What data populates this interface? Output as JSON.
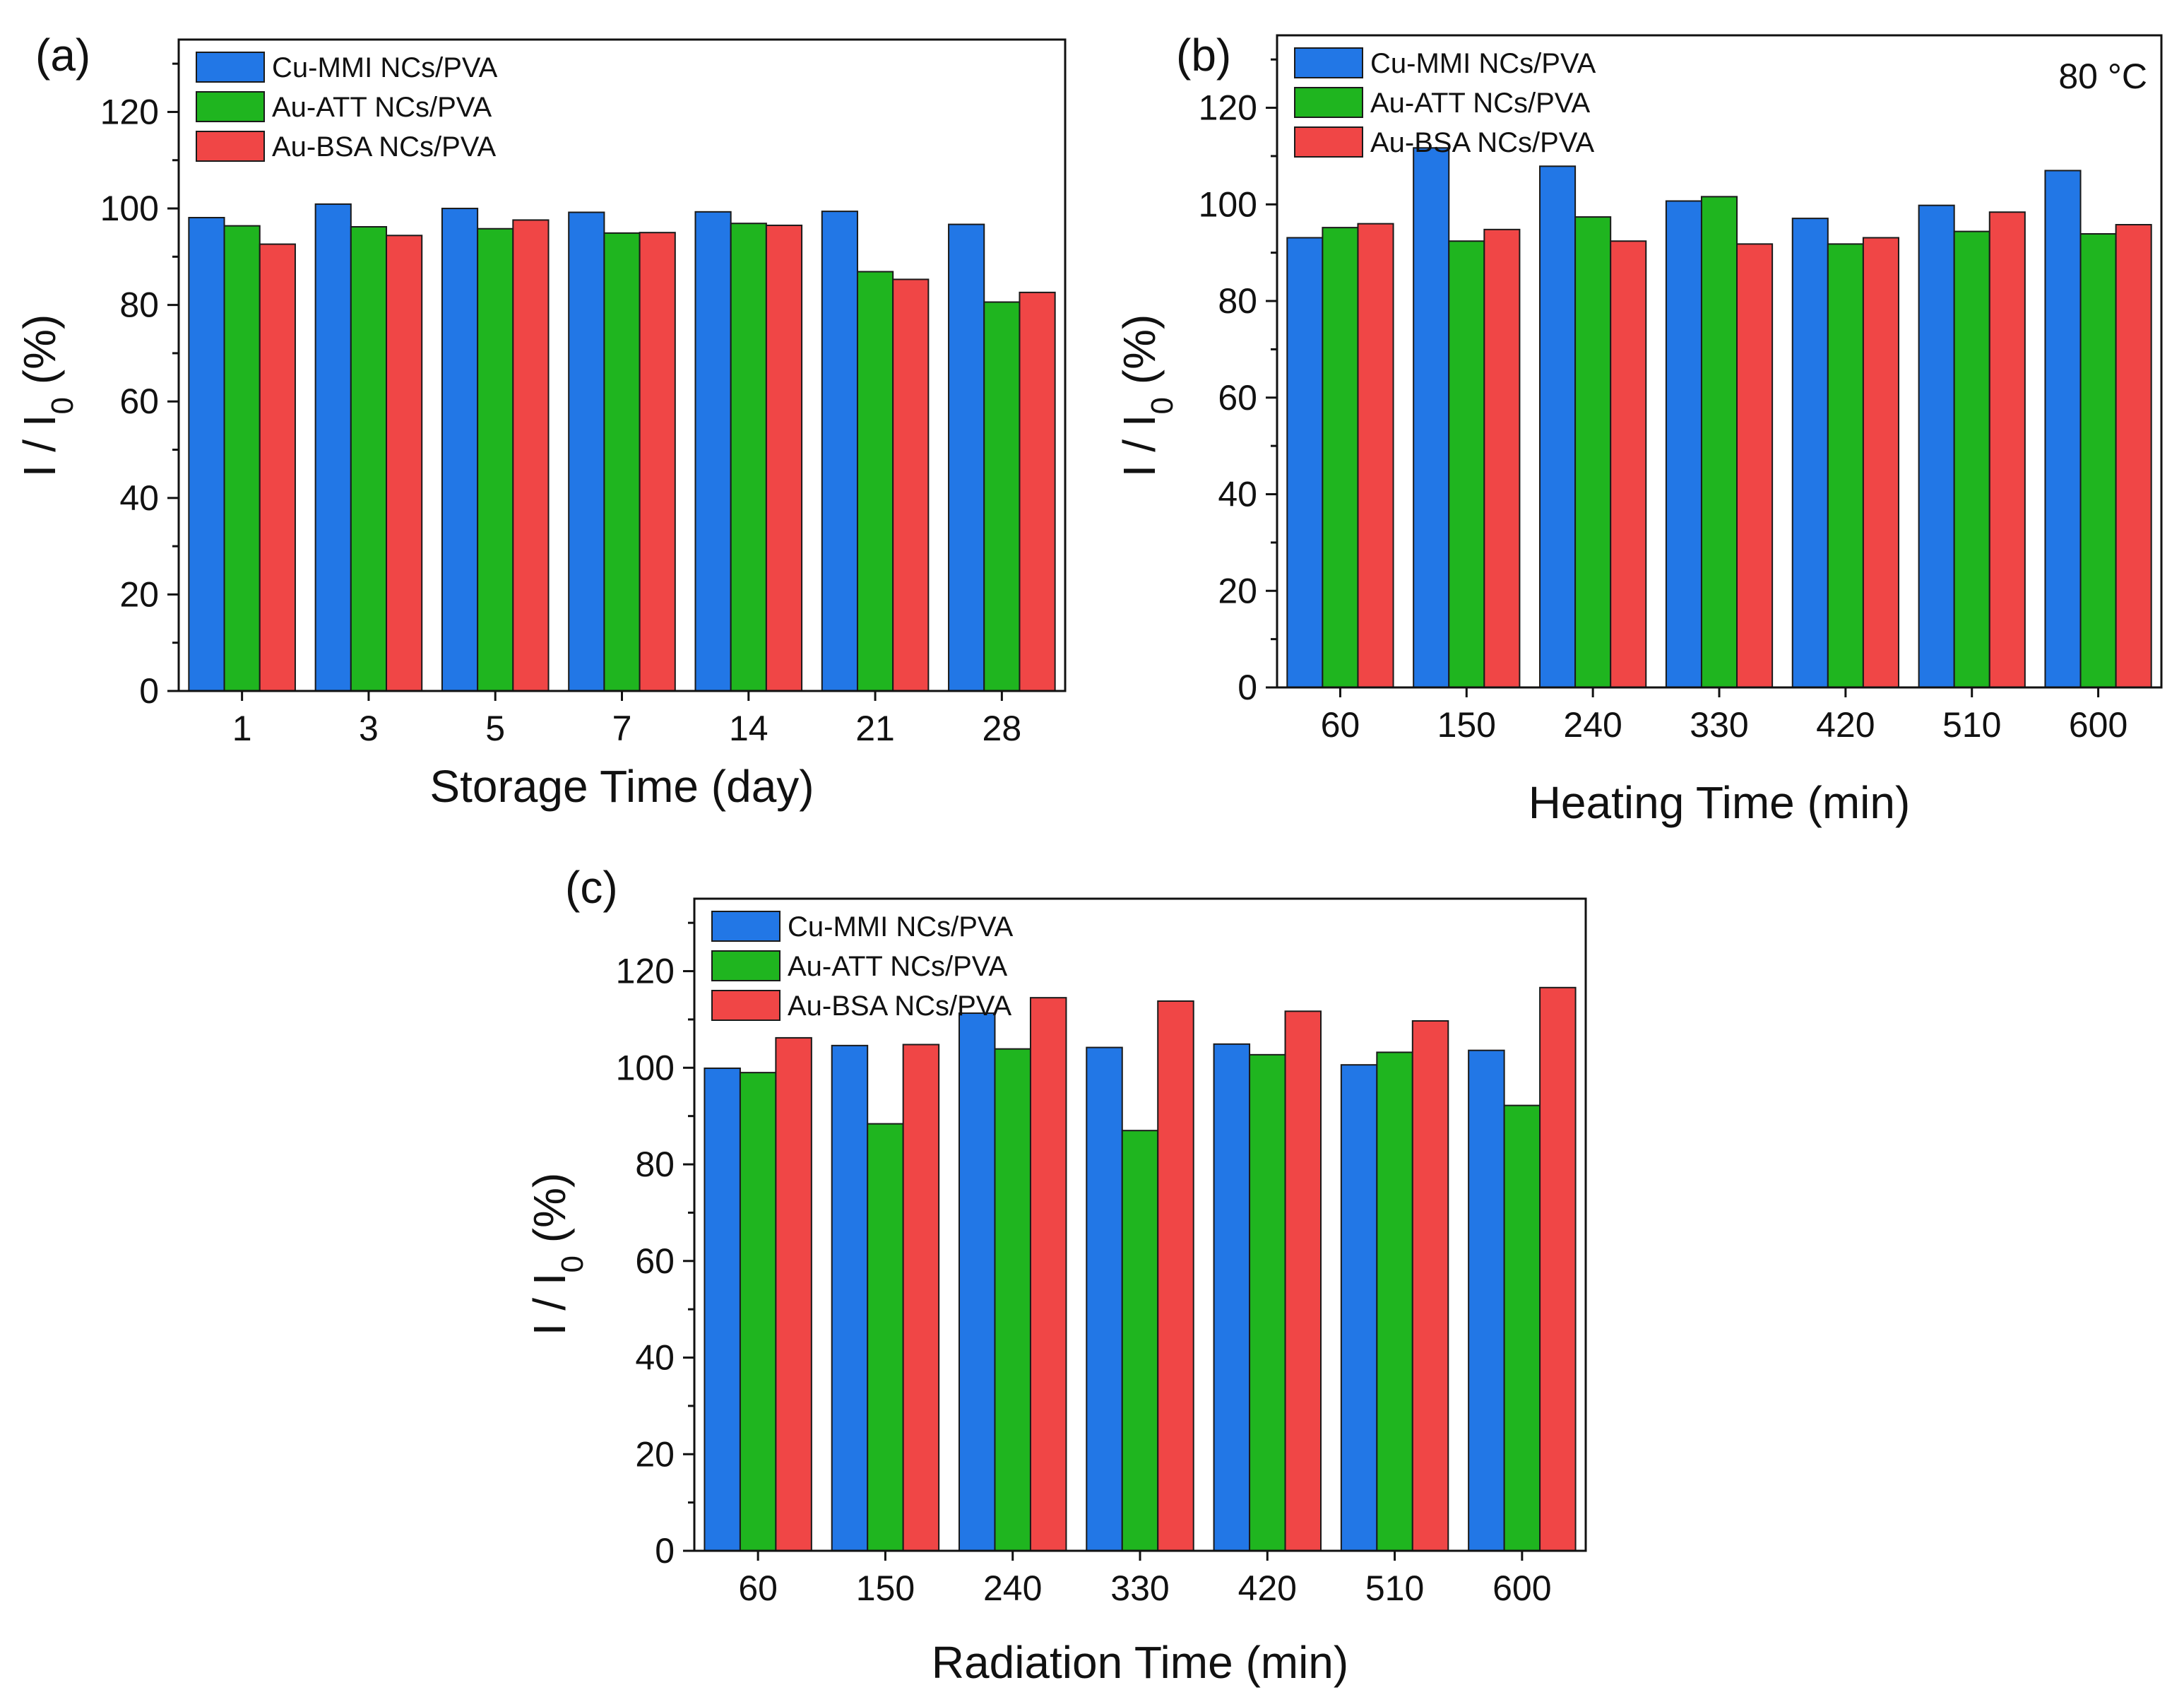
{
  "colors": {
    "cu": "#2277e6",
    "att": "#1fb51f",
    "bsa": "#f04646"
  },
  "chart_data": [
    {
      "id": "a",
      "type": "bar",
      "panel_label": "(a)",
      "xlabel": "Storage Time (day)",
      "ylabel_main": "I / I",
      "ylabel_sub": "0",
      "ylabel_tail": " (%)",
      "ylim": [
        0,
        135
      ],
      "yticks": [
        0,
        20,
        40,
        60,
        80,
        100,
        120
      ],
      "categories": [
        "1",
        "3",
        "5",
        "7",
        "14",
        "21",
        "28"
      ],
      "series": [
        {
          "name": "Cu-MMI NCs/PVA",
          "values": [
            98.1,
            100.9,
            100.0,
            99.2,
            99.3,
            99.4,
            96.7
          ]
        },
        {
          "name": "Au-ATT NCs/PVA",
          "values": [
            96.4,
            96.2,
            95.8,
            94.9,
            96.9,
            86.9,
            80.6
          ]
        },
        {
          "name": "Au-BSA NCs/PVA",
          "values": [
            92.6,
            94.4,
            97.6,
            95.0,
            96.5,
            85.3,
            82.6
          ]
        }
      ],
      "annotation": ""
    },
    {
      "id": "b",
      "type": "bar",
      "panel_label": "(b)",
      "xlabel": "Heating Time (min)",
      "ylabel_main": "I / I",
      "ylabel_sub": "0",
      "ylabel_tail": " (%)",
      "ylim": [
        0,
        135
      ],
      "yticks": [
        0,
        20,
        40,
        60,
        80,
        100,
        120
      ],
      "categories": [
        "60",
        "150",
        "240",
        "330",
        "420",
        "510",
        "600"
      ],
      "series": [
        {
          "name": "Cu-MMI NCs/PVA",
          "values": [
            93.1,
            111.7,
            107.9,
            100.7,
            97.1,
            99.8,
            107.0
          ]
        },
        {
          "name": "Au-ATT NCs/PVA",
          "values": [
            95.2,
            92.4,
            97.4,
            101.6,
            91.8,
            94.4,
            93.9
          ]
        },
        {
          "name": "Au-BSA NCs/PVA",
          "values": [
            96.0,
            94.8,
            92.4,
            91.8,
            93.1,
            98.4,
            95.8
          ]
        }
      ],
      "annotation": "80 °C"
    },
    {
      "id": "c",
      "type": "bar",
      "panel_label": "(c)",
      "xlabel": "Radiation Time (min)",
      "ylabel_main": "I / I",
      "ylabel_sub": "0",
      "ylabel_tail": " (%)",
      "ylim": [
        0,
        135
      ],
      "yticks": [
        0,
        20,
        40,
        60,
        80,
        100,
        120
      ],
      "categories": [
        "60",
        "150",
        "240",
        "330",
        "420",
        "510",
        "600"
      ],
      "series": [
        {
          "name": "Cu-MMI NCs/PVA",
          "values": [
            99.9,
            104.6,
            111.3,
            104.2,
            104.9,
            100.6,
            103.6
          ]
        },
        {
          "name": "Au-ATT NCs/PVA",
          "values": [
            99.0,
            88.4,
            103.9,
            87.0,
            102.7,
            103.2,
            92.2
          ]
        },
        {
          "name": "Au-BSA NCs/PVA",
          "values": [
            106.2,
            104.8,
            114.5,
            113.8,
            111.7,
            109.7,
            116.6
          ]
        }
      ],
      "annotation": ""
    }
  ]
}
